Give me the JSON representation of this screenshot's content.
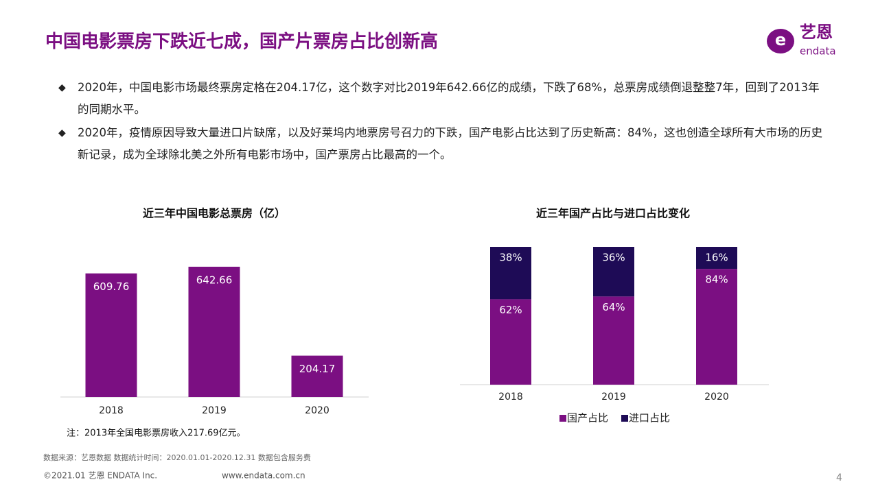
{
  "title": "中国电影票房下跌近七成，国产片票房占比创新高",
  "logo": {
    "cn": "艺恩",
    "en": "endata"
  },
  "bullets": [
    "2020年，中国电影市场最终票房定格在204.17亿，这个数字对比2019年642.66亿的成绩，下跌了68%，总票房成绩倒退整整7年，回到了2013年的同期水平。",
    "2020年，疫情原因导致大量进口片缺席，以及好莱坞内地票房号召力的下跌，国产电影占比达到了历史新高：84%，这也创造全球所有大市场的历史新记录，成为全球除北美之外所有电影市场中，国产票房占比最高的一个。"
  ],
  "chart_data": [
    {
      "type": "bar",
      "title": "近三年中国电影总票房（亿）",
      "categories": [
        "2018",
        "2019",
        "2020"
      ],
      "values": [
        609.76,
        642.66,
        204.17
      ],
      "color": "#7b0f82",
      "note": "注：2013年全国电影票房收入217.69亿元。"
    },
    {
      "type": "stacked_bar",
      "title": "近三年国产占比与进口占比变化",
      "categories": [
        "2018",
        "2019",
        "2020"
      ],
      "series": [
        {
          "name": "国产占比",
          "color": "#7b0f82",
          "values": [
            62,
            64,
            84
          ],
          "value_labels": [
            "62%",
            "64%",
            "84%"
          ]
        },
        {
          "name": "进口占比",
          "color": "#1e0b56",
          "values": [
            38,
            36,
            16
          ],
          "value_labels": [
            "38%",
            "36%",
            "16%"
          ]
        }
      ],
      "legend": "bottom"
    }
  ],
  "footer": {
    "source": "数据来源：艺恩数据    数据统计时间：2020.01.01-2020.12.31 数据包含服务费",
    "copyright": "©2021.01 艺恩 ENDATA Inc.",
    "website": "www.endata.com.cn",
    "page": "4"
  }
}
